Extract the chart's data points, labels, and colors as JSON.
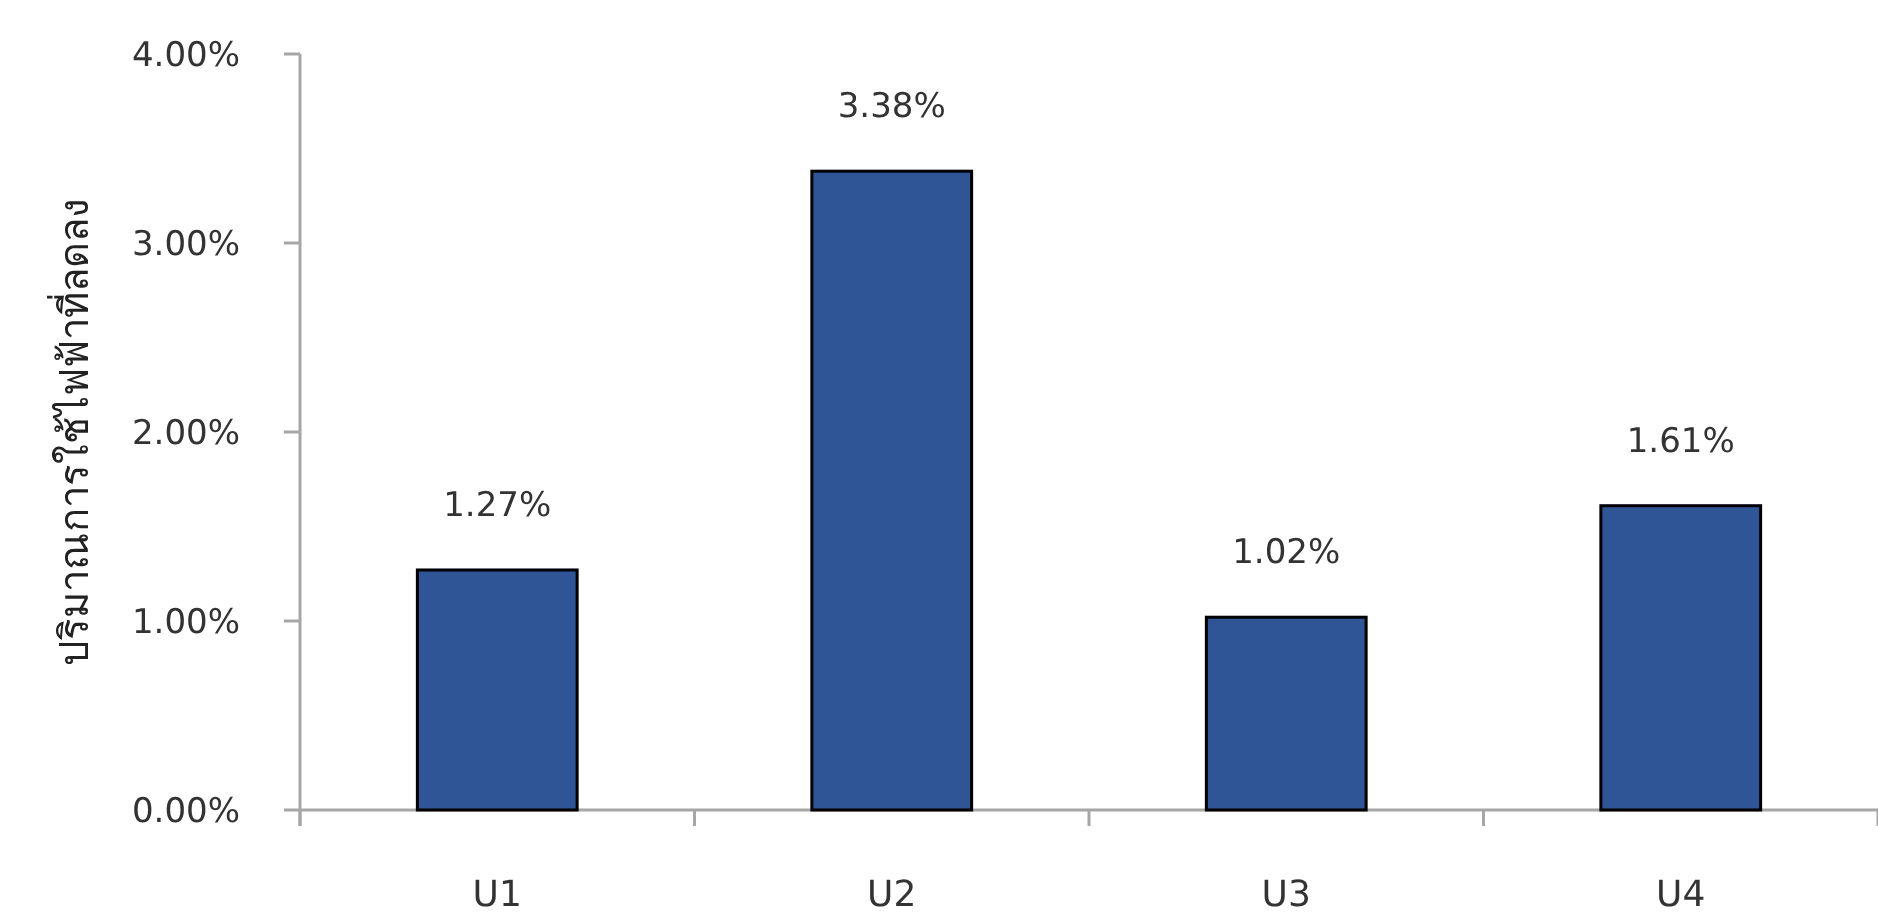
{
  "chart_data": {
    "type": "bar",
    "ylabel": "ปริมาณการใช้ไฟฟ้าที่ลดลง",
    "categories": [
      "U1",
      "U2",
      "U3",
      "U4"
    ],
    "values": [
      1.27,
      3.38,
      1.02,
      1.61
    ],
    "value_labels": [
      "1.27%",
      "3.38%",
      "1.02%",
      "1.61%"
    ],
    "color": "#2f5597",
    "ylim": [
      0,
      4
    ],
    "yticks": [
      {
        "value": 0,
        "label": "0.00%"
      },
      {
        "value": 1,
        "label": "1.00%"
      },
      {
        "value": 2,
        "label": "2.00%"
      },
      {
        "value": 3,
        "label": "3.00%"
      },
      {
        "value": 4,
        "label": "4.00%"
      }
    ],
    "grid": false
  }
}
